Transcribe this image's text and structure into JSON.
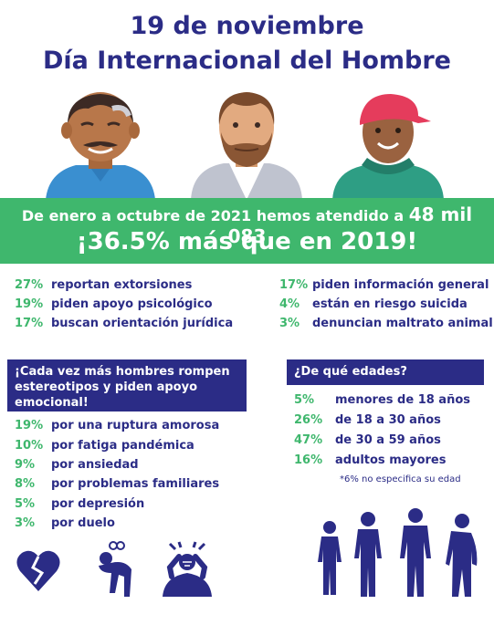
{
  "title": {
    "line1": "19 de noviembre",
    "line2": "Día Internacional del Hombre"
  },
  "banner": {
    "line1_prefix": "De enero a octubre de 2021 hemos atendido a ",
    "line1_highlight": "48 mil 083",
    "line2": "¡36.5% más que en 2019!"
  },
  "reasons_left": [
    {
      "pct": "27%",
      "text": "reportan extorsiones"
    },
    {
      "pct": "19%",
      "text": "piden apoyo psicológico"
    },
    {
      "pct": "17%",
      "text": "buscan orientación jurídica"
    }
  ],
  "reasons_right": [
    {
      "pct": "17%",
      "text": "piden información general"
    },
    {
      "pct": "4%",
      "text": "están en riesgo suicida"
    },
    {
      "pct": "3%",
      "text": "denuncian maltrato animal"
    }
  ],
  "emotional": {
    "header": "¡Cada vez más hombres rompen estereotipos y piden apoyo emocional!",
    "items": [
      {
        "pct": "19%",
        "text": "por una ruptura amorosa"
      },
      {
        "pct": "10%",
        "text": "por fatiga pandémica"
      },
      {
        "pct": "9%",
        "text": "por ansiedad"
      },
      {
        "pct": "8%",
        "text": "por problemas familiares"
      },
      {
        "pct": "5%",
        "text": "por depresión"
      },
      {
        "pct": "3%",
        "text": "por duelo"
      }
    ]
  },
  "ages": {
    "header": "¿De qué edades?",
    "items": [
      {
        "pct": "5%",
        "text": "menores de 18 años"
      },
      {
        "pct": "26%",
        "text": "de 18 a 30 años"
      },
      {
        "pct": "47%",
        "text": "de 30 a 59 años"
      },
      {
        "pct": "16%",
        "text": "adultos mayores"
      }
    ],
    "note": "*6% no especifica su edad"
  },
  "icons": [
    "old-man-portrait",
    "bearded-man-portrait",
    "young-man-cap-portrait",
    "broken-heart-icon",
    "tired-person-icon",
    "stressed-person-icon",
    "male-silhouettes"
  ],
  "colors": {
    "navy": "#2b2c86",
    "green": "#3fb76d",
    "white": "#ffffff"
  }
}
